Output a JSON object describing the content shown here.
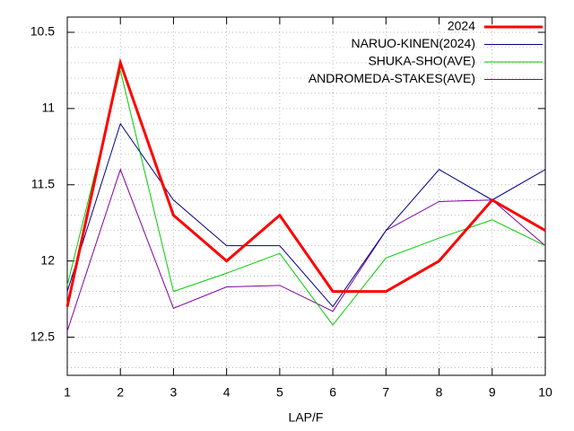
{
  "chart_data": {
    "type": "line",
    "x_label": "LAP/F",
    "x": [
      1,
      2,
      3,
      4,
      5,
      6,
      7,
      8,
      9,
      10
    ],
    "xlim": [
      1,
      10
    ],
    "xticks": [
      1,
      2,
      3,
      4,
      5,
      6,
      7,
      8,
      9,
      10
    ],
    "ylim": [
      12.75,
      10.4
    ],
    "yticks": [
      10.5,
      11,
      11.5,
      12,
      12.5
    ],
    "yminorticks": [
      10.6,
      10.7,
      10.8,
      10.9,
      11.1,
      11.2,
      11.3,
      11.4,
      11.6,
      11.7,
      11.8,
      11.9,
      12.1,
      12.2,
      12.3,
      12.4,
      12.6,
      12.7
    ],
    "grid": true,
    "legend": "top-right",
    "series": [
      {
        "name": "2024",
        "color": "#ff0000",
        "width": 3,
        "values": [
          12.3,
          10.7,
          11.7,
          12.0,
          11.7,
          12.2,
          12.2,
          12.0,
          11.6,
          11.8
        ]
      },
      {
        "name": "NARUO-KINEN(2024)",
        "color": "#00008b",
        "width": 1,
        "values": [
          12.2,
          11.1,
          11.6,
          11.9,
          11.9,
          12.3,
          11.8,
          11.4,
          11.6,
          11.4
        ]
      },
      {
        "name": "SHUKA-SHO(AVE)",
        "color": "#00cc00",
        "width": 1,
        "values": [
          12.16,
          10.75,
          12.2,
          12.08,
          11.95,
          12.42,
          11.98,
          11.85,
          11.73,
          11.9
        ]
      },
      {
        "name": "ANDROMEDA-STAKES(AVE)",
        "color": "#8000a0",
        "width": 1,
        "values": [
          12.46,
          11.4,
          12.31,
          12.17,
          12.16,
          12.33,
          11.8,
          11.61,
          11.6,
          11.9
        ]
      }
    ]
  }
}
